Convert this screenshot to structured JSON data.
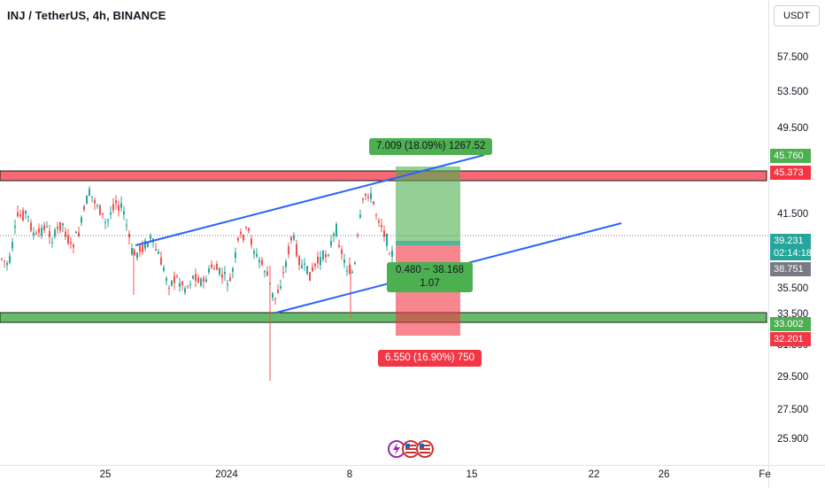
{
  "header": {
    "symbol": "INJ / TetherUS, 4h, BINANCE",
    "currency": "USDT"
  },
  "price_axis": {
    "ticks": [
      "57.500",
      "53.500",
      "49.500",
      "41.500",
      "35.500",
      "33.500",
      "31.500",
      "29.500",
      "27.500",
      "25.900"
    ]
  },
  "price_labels": {
    "target": {
      "value": "45.760",
      "color": "#4caf50"
    },
    "resistance": {
      "value": "45.373",
      "color": "#f23645"
    },
    "current": {
      "value": "39.231",
      "color": "#26a69a"
    },
    "countdown": {
      "value": "02:14:18",
      "color": "#26a69a"
    },
    "entry": {
      "value": "38.751",
      "color": "#787b86"
    },
    "support": {
      "value": "33.002",
      "color": "#4caf50"
    },
    "stop": {
      "value": "32.201",
      "color": "#f23645"
    }
  },
  "time_axis": {
    "ticks": [
      "25",
      "2024",
      "8",
      "15",
      "22",
      "26",
      "Fe"
    ]
  },
  "position_tool": {
    "target_label": "7.009 (18.09%) 1267.52",
    "entry_label_line1": "0.480 ~ 38.168",
    "entry_label_line2": "1.07",
    "stop_label": "6.550 (16.90%) 750"
  },
  "colors": {
    "up": "#26a69a",
    "down": "#ef5350",
    "trendline": "#2962ff",
    "resistance_zone": "#f23645",
    "support_zone": "#4caf50"
  }
}
